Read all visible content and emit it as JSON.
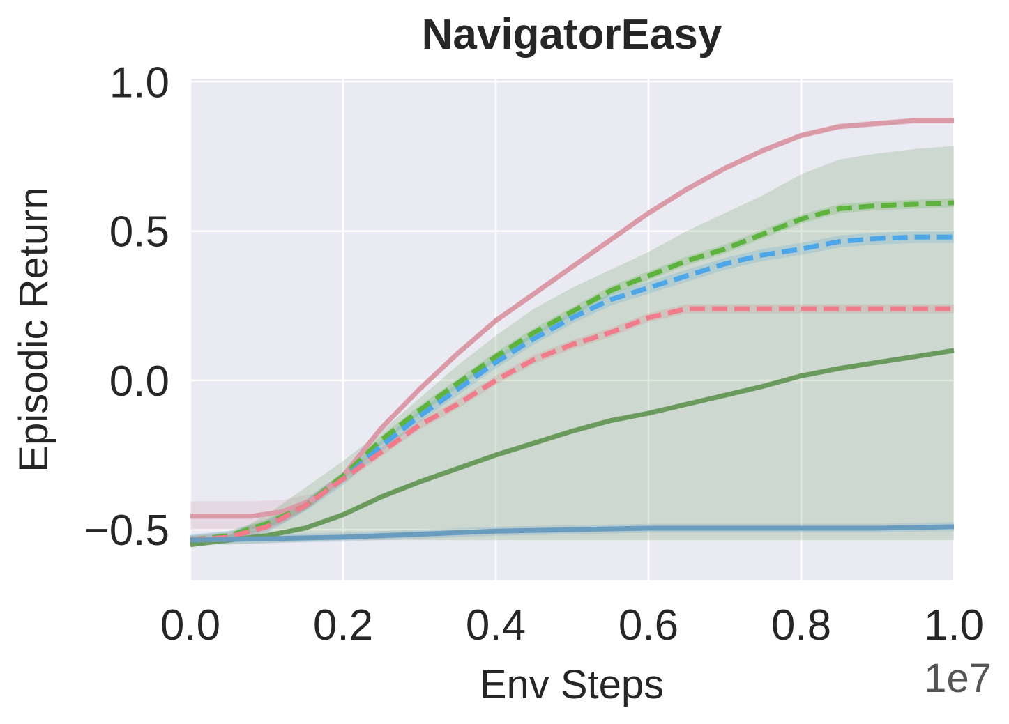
{
  "chart_data": {
    "type": "line",
    "title": "NavigatorEasy",
    "xlabel": "Env Steps",
    "ylabel": "Episodic Return",
    "x_offset_label": "1e7",
    "xlim": [
      0.0,
      1.0
    ],
    "ylim": [
      -0.67,
      1.01
    ],
    "x_ticks": [
      "0.0",
      "0.2",
      "0.4",
      "0.6",
      "0.8",
      "1.0"
    ],
    "y_ticks": [
      "1.0",
      "0.5",
      "0.0",
      "−0.5"
    ],
    "grid": true,
    "legend": "none",
    "background": "#eaeaf2",
    "series": [
      {
        "color": "#da9aa8",
        "style": "solid",
        "x": [
          0.0,
          0.08,
          0.12,
          0.16,
          0.2,
          0.25,
          0.3,
          0.35,
          0.4,
          0.45,
          0.5,
          0.55,
          0.6,
          0.65,
          0.7,
          0.75,
          0.8,
          0.85,
          0.9,
          0.95,
          1.0
        ],
        "y": [
          -0.455,
          -0.455,
          -0.44,
          -0.4,
          -0.32,
          -0.16,
          -0.03,
          0.09,
          0.2,
          0.29,
          0.38,
          0.47,
          0.56,
          0.64,
          0.71,
          0.77,
          0.82,
          0.85,
          0.86,
          0.87,
          0.87
        ],
        "band_lower": [
          -0.5,
          -0.5,
          -0.48,
          -0.42,
          -0.33,
          -0.17,
          -0.04,
          0.08,
          0.19,
          0.28,
          0.37,
          0.46,
          0.55,
          0.63,
          0.7,
          0.76,
          0.81,
          0.84,
          0.85,
          0.86,
          0.86
        ],
        "band_upper": [
          -0.405,
          -0.405,
          -0.4,
          -0.38,
          -0.31,
          -0.15,
          -0.02,
          0.1,
          0.21,
          0.3,
          0.39,
          0.48,
          0.57,
          0.65,
          0.72,
          0.78,
          0.83,
          0.86,
          0.87,
          0.88,
          0.88
        ]
      },
      {
        "color": "#5db33e",
        "style": "dashed",
        "x": [
          0.0,
          0.05,
          0.1,
          0.15,
          0.2,
          0.25,
          0.3,
          0.35,
          0.4,
          0.45,
          0.5,
          0.55,
          0.6,
          0.65,
          0.7,
          0.75,
          0.8,
          0.85,
          0.9,
          0.95,
          1.0
        ],
        "y": [
          -0.535,
          -0.52,
          -0.48,
          -0.42,
          -0.32,
          -0.2,
          -0.1,
          -0.01,
          0.08,
          0.16,
          0.23,
          0.3,
          0.35,
          0.4,
          0.44,
          0.49,
          0.54,
          0.575,
          0.585,
          0.59,
          0.595
        ],
        "band_lower": [
          -0.55,
          -0.535,
          -0.495,
          -0.435,
          -0.335,
          -0.215,
          -0.115,
          -0.025,
          0.065,
          0.145,
          0.215,
          0.285,
          0.335,
          0.385,
          0.425,
          0.475,
          0.525,
          0.56,
          0.57,
          0.575,
          0.58
        ],
        "band_upper": [
          -0.52,
          -0.505,
          -0.465,
          -0.405,
          -0.305,
          -0.185,
          -0.085,
          0.005,
          0.095,
          0.175,
          0.245,
          0.315,
          0.365,
          0.415,
          0.455,
          0.505,
          0.555,
          0.59,
          0.6,
          0.605,
          0.61
        ]
      },
      {
        "color": "#4da6e8",
        "style": "dashed",
        "x": [
          0.0,
          0.05,
          0.1,
          0.15,
          0.2,
          0.25,
          0.3,
          0.35,
          0.4,
          0.45,
          0.5,
          0.55,
          0.6,
          0.65,
          0.7,
          0.75,
          0.8,
          0.85,
          0.9,
          0.95,
          1.0
        ],
        "y": [
          -0.535,
          -0.525,
          -0.49,
          -0.42,
          -0.33,
          -0.22,
          -0.12,
          -0.03,
          0.06,
          0.14,
          0.21,
          0.27,
          0.31,
          0.35,
          0.39,
          0.42,
          0.44,
          0.465,
          0.475,
          0.48,
          0.48
        ],
        "band_lower": [
          -0.555,
          -0.545,
          -0.51,
          -0.44,
          -0.35,
          -0.24,
          -0.14,
          -0.05,
          0.04,
          0.12,
          0.19,
          0.25,
          0.29,
          0.33,
          0.37,
          0.4,
          0.42,
          0.445,
          0.455,
          0.46,
          0.46
        ],
        "band_upper": [
          -0.515,
          -0.505,
          -0.47,
          -0.4,
          -0.31,
          -0.2,
          -0.1,
          -0.01,
          0.08,
          0.16,
          0.23,
          0.29,
          0.33,
          0.37,
          0.41,
          0.44,
          0.46,
          0.485,
          0.495,
          0.5,
          0.5
        ]
      },
      {
        "color": "#f07b8a",
        "style": "dashed",
        "x": [
          0.0,
          0.05,
          0.1,
          0.15,
          0.2,
          0.25,
          0.3,
          0.35,
          0.4,
          0.45,
          0.5,
          0.55,
          0.6,
          0.65,
          0.7,
          0.8,
          0.9,
          1.0
        ],
        "y": [
          -0.535,
          -0.525,
          -0.49,
          -0.42,
          -0.33,
          -0.24,
          -0.15,
          -0.08,
          0.0,
          0.07,
          0.12,
          0.16,
          0.21,
          0.24,
          0.24,
          0.24,
          0.24,
          0.24
        ],
        "band_lower": [
          -0.55,
          -0.54,
          -0.505,
          -0.435,
          -0.345,
          -0.255,
          -0.165,
          -0.095,
          -0.015,
          0.055,
          0.105,
          0.145,
          0.195,
          0.225,
          0.225,
          0.225,
          0.225,
          0.225
        ],
        "band_upper": [
          -0.52,
          -0.51,
          -0.475,
          -0.405,
          -0.315,
          -0.225,
          -0.135,
          -0.065,
          0.015,
          0.085,
          0.135,
          0.175,
          0.225,
          0.255,
          0.255,
          0.255,
          0.255,
          0.255
        ]
      },
      {
        "color": "#6a9a5c",
        "style": "solid",
        "x": [
          0.0,
          0.05,
          0.1,
          0.15,
          0.2,
          0.25,
          0.3,
          0.35,
          0.4,
          0.45,
          0.5,
          0.55,
          0.6,
          0.65,
          0.7,
          0.75,
          0.8,
          0.85,
          0.9,
          0.95,
          1.0
        ],
        "y": [
          -0.55,
          -0.535,
          -0.52,
          -0.495,
          -0.45,
          -0.39,
          -0.34,
          -0.295,
          -0.25,
          -0.21,
          -0.17,
          -0.135,
          -0.11,
          -0.08,
          -0.05,
          -0.02,
          0.015,
          0.04,
          0.06,
          0.08,
          0.1
        ],
        "band_lower": [
          -0.55,
          -0.55,
          -0.545,
          -0.54,
          -0.535,
          -0.535,
          -0.535,
          -0.535,
          -0.535,
          -0.535,
          -0.535,
          -0.535,
          -0.535,
          -0.535,
          -0.535,
          -0.535,
          -0.535,
          -0.535,
          -0.535,
          -0.535,
          -0.535
        ],
        "band_upper": [
          -0.54,
          -0.52,
          -0.45,
          -0.36,
          -0.27,
          -0.17,
          -0.06,
          0.05,
          0.15,
          0.24,
          0.31,
          0.37,
          0.43,
          0.5,
          0.56,
          0.62,
          0.69,
          0.74,
          0.76,
          0.775,
          0.785
        ]
      },
      {
        "color": "#6a9cc0",
        "style": "solid",
        "x": [
          0.0,
          0.1,
          0.2,
          0.3,
          0.4,
          0.5,
          0.6,
          0.7,
          0.8,
          0.9,
          1.0
        ],
        "y": [
          -0.535,
          -0.53,
          -0.525,
          -0.515,
          -0.505,
          -0.5,
          -0.495,
          -0.495,
          -0.495,
          -0.495,
          -0.49
        ],
        "band_lower": [
          -0.55,
          -0.545,
          -0.54,
          -0.53,
          -0.52,
          -0.515,
          -0.51,
          -0.51,
          -0.51,
          -0.51,
          -0.505
        ],
        "band_upper": [
          -0.52,
          -0.515,
          -0.51,
          -0.5,
          -0.49,
          -0.485,
          -0.48,
          -0.48,
          -0.48,
          -0.48,
          -0.475
        ]
      }
    ]
  }
}
